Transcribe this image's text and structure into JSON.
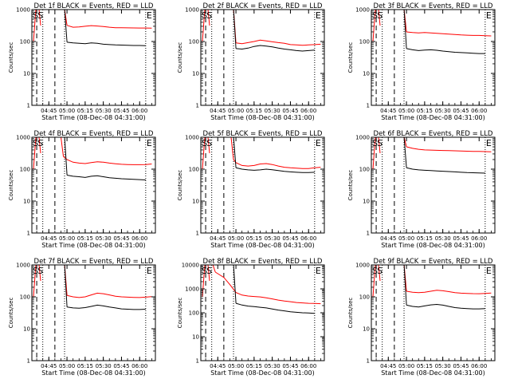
{
  "chart_data": [
    {
      "type": "line",
      "title": "Det 1f BLACK = Events, RED = LLD",
      "xlabel": "Start Time (08-Dec-08 04:31:00)",
      "ylabel": "Counts/sec",
      "yscale": "log",
      "ylim": [
        1,
        1000
      ],
      "ytick_labels": [
        "1",
        "10",
        "100",
        "1000"
      ],
      "xlim": [
        "04:31",
        "06:13"
      ],
      "xtick_labels": [
        "04:45",
        "05:00",
        "05:15",
        "05:30",
        "05:45",
        "06:00"
      ],
      "markers": [
        "S",
        "S",
        "E"
      ],
      "series": [
        {
          "color": "#ff0000",
          "x": [
            "05:00",
            "05:05",
            "05:10",
            "05:15",
            "05:20",
            "05:25",
            "05:30",
            "05:35",
            "05:40",
            "05:45",
            "05:50",
            "05:55",
            "06:00",
            "06:05",
            "06:10"
          ],
          "values": [
            320,
            280,
            285,
            300,
            315,
            305,
            295,
            280,
            270,
            270,
            268,
            266,
            265,
            264,
            262
          ]
        },
        {
          "color": "#000000",
          "x": [
            "05:00",
            "05:05",
            "05:10",
            "05:15",
            "05:20",
            "05:25",
            "05:30",
            "05:35",
            "05:40",
            "05:45",
            "05:50",
            "05:55",
            "06:00",
            "06:05"
          ],
          "values": [
            95,
            90,
            88,
            85,
            90,
            88,
            82,
            80,
            78,
            77,
            76,
            75,
            75,
            74
          ]
        }
      ]
    },
    {
      "type": "line",
      "title": "Det 2f BLACK = Events, RED = LLD",
      "xlabel": "Start Time (08-Dec-08 04:31:00)",
      "ylabel": "Counts/sec",
      "yscale": "log",
      "ylim": [
        1,
        1000
      ],
      "ytick_labels": [
        "1",
        "10",
        "100",
        "1000"
      ],
      "xlim": [
        "04:31",
        "06:13"
      ],
      "xtick_labels": [
        "04:45",
        "05:00",
        "05:15",
        "05:30",
        "05:45",
        "06:00"
      ],
      "markers": [
        "S",
        "S",
        "E"
      ],
      "series": [
        {
          "color": "#ff0000",
          "x": [
            "05:00",
            "05:05",
            "05:10",
            "05:15",
            "05:20",
            "05:25",
            "05:30",
            "05:35",
            "05:40",
            "05:45",
            "05:50",
            "05:55",
            "06:00",
            "06:05",
            "06:10"
          ],
          "values": [
            90,
            85,
            92,
            100,
            110,
            105,
            98,
            92,
            88,
            80,
            78,
            76,
            78,
            80,
            82
          ]
        },
        {
          "color": "#000000",
          "x": [
            "05:00",
            "05:05",
            "05:10",
            "05:15",
            "05:20",
            "05:25",
            "05:30",
            "05:35",
            "05:40",
            "05:45",
            "05:50",
            "05:55",
            "06:00",
            "06:05"
          ],
          "values": [
            60,
            58,
            62,
            70,
            75,
            72,
            68,
            62,
            58,
            55,
            52,
            50,
            52,
            54
          ]
        }
      ]
    },
    {
      "type": "line",
      "title": "Det 3f BLACK = Events, RED = LLD",
      "xlabel": "Start Time (08-Dec-08 04:31:00)",
      "ylabel": "Counts/sec",
      "yscale": "log",
      "ylim": [
        1,
        1000
      ],
      "ytick_labels": [
        "1",
        "10",
        "100",
        "1000"
      ],
      "xlim": [
        "04:31",
        "06:13"
      ],
      "xtick_labels": [
        "04:45",
        "05:00",
        "05:15",
        "05:30",
        "05:45",
        "06:00"
      ],
      "markers": [
        "S",
        "S",
        "E"
      ],
      "series": [
        {
          "color": "#ff0000",
          "x": [
            "05:00",
            "05:05",
            "05:10",
            "05:15",
            "05:20",
            "05:25",
            "05:30",
            "05:35",
            "05:40",
            "05:45",
            "05:50",
            "05:55",
            "06:00",
            "06:05",
            "06:10"
          ],
          "values": [
            200,
            190,
            185,
            190,
            185,
            180,
            175,
            170,
            165,
            160,
            158,
            155,
            155,
            152,
            150
          ]
        },
        {
          "color": "#000000",
          "x": [
            "05:00",
            "05:05",
            "05:10",
            "05:15",
            "05:20",
            "05:25",
            "05:30",
            "05:35",
            "05:40",
            "05:45",
            "05:50",
            "05:55",
            "06:00",
            "06:05"
          ],
          "values": [
            60,
            55,
            52,
            54,
            55,
            53,
            50,
            48,
            46,
            45,
            44,
            43,
            42,
            42
          ]
        }
      ]
    },
    {
      "type": "line",
      "title": "Det 4f BLACK = Events, RED = LLD",
      "xlabel": "Start Time (08-Dec-08 04:31:00)",
      "ylabel": "Counts/sec",
      "yscale": "log",
      "ylim": [
        1,
        1000
      ],
      "ytick_labels": [
        "1",
        "10",
        "100",
        "1000"
      ],
      "xlim": [
        "04:31",
        "06:13"
      ],
      "xtick_labels": [
        "04:45",
        "05:00",
        "05:15",
        "05:30",
        "05:45",
        "06:00"
      ],
      "markers": [
        "S",
        "S",
        "E"
      ],
      "series": [
        {
          "color": "#ff0000",
          "x": [
            "04:57",
            "05:00",
            "05:05",
            "05:10",
            "05:15",
            "05:20",
            "05:25",
            "05:30",
            "05:35",
            "05:40",
            "05:45",
            "05:50",
            "05:55",
            "06:00",
            "06:05",
            "06:10"
          ],
          "values": [
            250,
            200,
            165,
            155,
            150,
            160,
            170,
            165,
            155,
            148,
            142,
            140,
            138,
            138,
            140,
            145
          ]
        },
        {
          "color": "#000000",
          "x": [
            "05:00",
            "05:05",
            "05:10",
            "05:15",
            "05:20",
            "05:25",
            "05:30",
            "05:35",
            "05:40",
            "05:45",
            "05:50",
            "05:55",
            "06:00",
            "06:05"
          ],
          "values": [
            65,
            60,
            58,
            55,
            60,
            62,
            58,
            54,
            52,
            50,
            49,
            48,
            47,
            46
          ]
        }
      ]
    },
    {
      "type": "line",
      "title": "Det 5f BLACK = Events, RED = LLD",
      "xlabel": "Start Time (08-Dec-08 04:31:00)",
      "ylabel": "Counts/sec",
      "yscale": "log",
      "ylim": [
        1,
        1000
      ],
      "ytick_labels": [
        "1",
        "10",
        "100",
        "1000"
      ],
      "xlim": [
        "04:31",
        "06:13"
      ],
      "xtick_labels": [
        "04:45",
        "05:00",
        "05:15",
        "05:30",
        "05:45",
        "06:00"
      ],
      "markers": [
        "S",
        "S",
        "E"
      ],
      "series": [
        {
          "color": "#ff0000",
          "x": [
            "04:58",
            "05:00",
            "05:05",
            "05:10",
            "05:15",
            "05:20",
            "05:25",
            "05:30",
            "05:35",
            "05:40",
            "05:45",
            "05:50",
            "05:55",
            "06:00",
            "06:05",
            "06:10"
          ],
          "values": [
            200,
            160,
            130,
            125,
            130,
            145,
            150,
            140,
            125,
            115,
            110,
            108,
            105,
            105,
            110,
            115
          ]
        },
        {
          "color": "#000000",
          "x": [
            "05:00",
            "05:05",
            "05:10",
            "05:15",
            "05:20",
            "05:25",
            "05:30",
            "05:35",
            "05:40",
            "05:45",
            "05:50",
            "05:55",
            "06:00",
            "06:05"
          ],
          "values": [
            110,
            100,
            95,
            92,
            95,
            100,
            96,
            90,
            85,
            82,
            80,
            78,
            78,
            80
          ]
        }
      ]
    },
    {
      "type": "line",
      "title": "Det 6f BLACK = Events, RED = LLD",
      "xlabel": "Start Time (08-Dec-08 04:31:00)",
      "ylabel": "Counts/sec",
      "yscale": "log",
      "ylim": [
        1,
        1000
      ],
      "ytick_labels": [
        "1",
        "10",
        "100",
        "1000"
      ],
      "xlim": [
        "04:31",
        "06:13"
      ],
      "xtick_labels": [
        "04:45",
        "05:00",
        "05:15",
        "05:30",
        "05:45",
        "06:00"
      ],
      "markers": [
        "S",
        "S",
        "E"
      ],
      "series": [
        {
          "color": "#ff0000",
          "x": [
            "05:00",
            "05:05",
            "05:10",
            "05:15",
            "05:20",
            "05:25",
            "05:30",
            "05:35",
            "05:40",
            "05:45",
            "05:50",
            "05:55",
            "06:00",
            "06:05",
            "06:10"
          ],
          "values": [
            500,
            450,
            420,
            400,
            395,
            390,
            385,
            380,
            375,
            370,
            365,
            360,
            358,
            355,
            350
          ]
        },
        {
          "color": "#000000",
          "x": [
            "05:00",
            "05:05",
            "05:10",
            "05:15",
            "05:20",
            "05:25",
            "05:30",
            "05:35",
            "05:40",
            "05:45",
            "05:50",
            "05:55",
            "06:00",
            "06:05"
          ],
          "values": [
            110,
            100,
            95,
            92,
            90,
            88,
            86,
            84,
            82,
            80,
            78,
            77,
            76,
            75
          ]
        }
      ]
    },
    {
      "type": "line",
      "title": "Det 7f BLACK = Events, RED = LLD",
      "xlabel": "Start Time (08-Dec-08 04:31:00)",
      "ylabel": "Counts/sec",
      "yscale": "log",
      "ylim": [
        1,
        1000
      ],
      "ytick_labels": [
        "1",
        "10",
        "100",
        "1000"
      ],
      "xlim": [
        "04:31",
        "06:13"
      ],
      "xtick_labels": [
        "04:45",
        "05:00",
        "05:15",
        "05:30",
        "05:45",
        "06:00"
      ],
      "markers": [
        "S",
        "S",
        "E"
      ],
      "series": [
        {
          "color": "#ff0000",
          "x": [
            "05:00",
            "05:05",
            "05:10",
            "05:15",
            "05:20",
            "05:25",
            "05:30",
            "05:35",
            "05:40",
            "05:45",
            "05:50",
            "05:55",
            "06:00",
            "06:05",
            "06:10"
          ],
          "values": [
            110,
            100,
            95,
            100,
            115,
            130,
            125,
            115,
            105,
            100,
            98,
            96,
            95,
            98,
            102
          ]
        },
        {
          "color": "#000000",
          "x": [
            "05:00",
            "05:05",
            "05:10",
            "05:15",
            "05:20",
            "05:25",
            "05:30",
            "05:35",
            "05:40",
            "05:45",
            "05:50",
            "05:55",
            "06:00",
            "06:05"
          ],
          "values": [
            48,
            45,
            44,
            46,
            50,
            55,
            52,
            48,
            45,
            42,
            41,
            40,
            40,
            41
          ]
        }
      ]
    },
    {
      "type": "line",
      "title": "Det 8f BLACK = Events, RED = LLD",
      "xlabel": "Start Time (08-Dec-08 04:31:00)",
      "ylabel": "Counts/sec",
      "yscale": "log",
      "ylim": [
        1,
        10000
      ],
      "ytick_labels": [
        "1",
        "10",
        "100",
        "1000",
        "10000"
      ],
      "xlim": [
        "04:31",
        "06:13"
      ],
      "xtick_labels": [
        "04:45",
        "05:00",
        "05:15",
        "05:30",
        "05:45",
        "06:00"
      ],
      "markers": [
        "S",
        "S",
        "E"
      ],
      "series": [
        {
          "color": "#ff0000",
          "x": [
            "04:43",
            "04:50",
            "04:55",
            "05:00",
            "05:05",
            "05:10",
            "05:15",
            "05:20",
            "05:25",
            "05:30",
            "05:35",
            "05:40",
            "05:45",
            "05:50",
            "05:55",
            "06:00",
            "06:05",
            "06:10"
          ],
          "values": [
            5000,
            3000,
            1500,
            700,
            550,
            500,
            480,
            460,
            420,
            380,
            340,
            310,
            290,
            270,
            260,
            250,
            245,
            240
          ]
        },
        {
          "color": "#000000",
          "x": [
            "05:00",
            "05:05",
            "05:10",
            "05:15",
            "05:20",
            "05:25",
            "05:30",
            "05:35",
            "05:40",
            "05:45",
            "05:50",
            "05:55",
            "06:00",
            "06:05"
          ],
          "values": [
            250,
            210,
            190,
            180,
            170,
            160,
            145,
            130,
            120,
            110,
            105,
            100,
            98,
            95
          ]
        }
      ]
    },
    {
      "type": "line",
      "title": "Det 9f BLACK = Events, RED = LLD",
      "xlabel": "Start Time (08-Dec-08 04:31:00)",
      "ylabel": "Counts/sec",
      "yscale": "log",
      "ylim": [
        1,
        1000
      ],
      "ytick_labels": [
        "1",
        "10",
        "100",
        "1000"
      ],
      "xlim": [
        "04:31",
        "06:13"
      ],
      "xtick_labels": [
        "04:45",
        "05:00",
        "05:15",
        "05:30",
        "05:45",
        "06:00"
      ],
      "markers": [
        "S",
        "S",
        "E"
      ],
      "series": [
        {
          "color": "#ff0000",
          "x": [
            "05:00",
            "05:05",
            "05:10",
            "05:15",
            "05:20",
            "05:25",
            "05:30",
            "05:35",
            "05:40",
            "05:45",
            "05:50",
            "05:55",
            "06:00",
            "06:05",
            "06:10"
          ],
          "values": [
            150,
            140,
            135,
            140,
            150,
            160,
            155,
            145,
            135,
            130,
            128,
            126,
            125,
            128,
            132
          ]
        },
        {
          "color": "#000000",
          "x": [
            "05:00",
            "05:05",
            "05:10",
            "05:15",
            "05:20",
            "05:25",
            "05:30",
            "05:35",
            "05:40",
            "05:45",
            "05:50",
            "05:55",
            "06:00",
            "06:05"
          ],
          "values": [
            55,
            50,
            48,
            52,
            56,
            58,
            55,
            50,
            46,
            44,
            43,
            42,
            42,
            43
          ]
        }
      ]
    }
  ]
}
